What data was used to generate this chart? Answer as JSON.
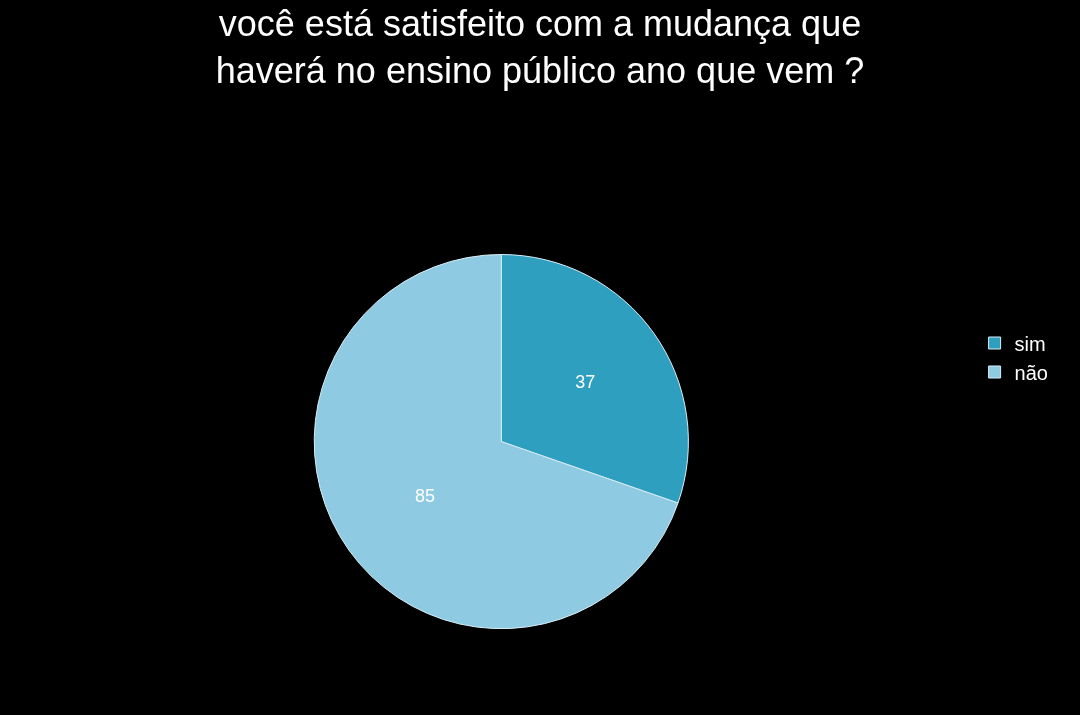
{
  "chart_data": {
    "type": "pie",
    "title": "você está satisfeito com a mudança que\nhaverá no ensino público ano que vem ?",
    "categories": [
      "sim",
      "não"
    ],
    "values": [
      37,
      85
    ],
    "colors": [
      "#2f9fc0",
      "#8ecbe3"
    ],
    "data_labels": true,
    "legend": "right"
  }
}
